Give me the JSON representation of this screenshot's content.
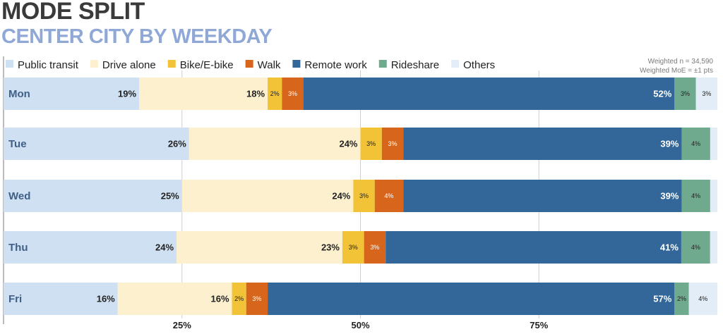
{
  "header": {
    "title": "MODE SPLIT",
    "subtitle": "CENTER CITY BY WEEKDAY",
    "note_n": "Weighted n = 34,590",
    "note_moe": "Weighted MoE = ±1 pts"
  },
  "colors": {
    "Public transit": "#cfe0f2",
    "Drive alone": "#fdf0cf",
    "Bike/E-bike": "#f2c237",
    "Walk": "#d7661c",
    "Remote work": "#336799",
    "Rideshare": "#6faa8e",
    "Others": "#e2edf7"
  },
  "chart_data": {
    "type": "bar",
    "orientation": "horizontal",
    "stacked": true,
    "categories": [
      "Mon",
      "Tue",
      "Wed",
      "Thu",
      "Fri"
    ],
    "series": [
      {
        "name": "Public transit",
        "values": [
          19,
          26,
          25,
          24,
          16
        ],
        "labels": [
          "19%",
          "26%",
          "25%",
          "24%",
          "16%"
        ]
      },
      {
        "name": "Drive alone",
        "values": [
          18,
          24,
          24,
          23,
          16
        ],
        "labels": [
          "18%",
          "24%",
          "24%",
          "23%",
          "16%"
        ]
      },
      {
        "name": "Bike/E-bike",
        "values": [
          2,
          3,
          3,
          3,
          2
        ],
        "labels": [
          "2%",
          "3%",
          "3%",
          "3%",
          "2%"
        ]
      },
      {
        "name": "Walk",
        "values": [
          3,
          3,
          4,
          3,
          3
        ],
        "labels": [
          "3%",
          "3%",
          "4%",
          "3%",
          "3%"
        ]
      },
      {
        "name": "Remote work",
        "values": [
          52,
          39,
          39,
          41,
          57
        ],
        "labels": [
          "52%",
          "39%",
          "39%",
          "41%",
          "57%"
        ]
      },
      {
        "name": "Rideshare",
        "values": [
          3,
          4,
          4,
          4,
          2
        ],
        "labels": [
          "3%",
          "4%",
          "4%",
          "4%",
          "2%"
        ]
      },
      {
        "name": "Others",
        "values": [
          3,
          1,
          1,
          1,
          4
        ],
        "labels": [
          "3%",
          "",
          "",
          "",
          "4%"
        ]
      }
    ],
    "xlim": [
      0,
      100
    ],
    "xticks": [
      25,
      50,
      75
    ],
    "xtick_labels": [
      "25%",
      "50%",
      "75%"
    ],
    "legend_position": "top",
    "grid": true
  }
}
